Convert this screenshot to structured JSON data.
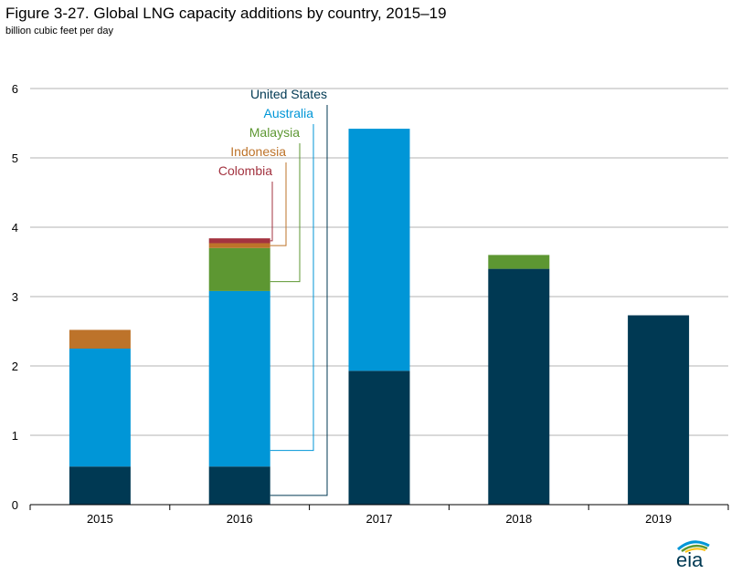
{
  "header": {
    "title": "Figure 3-27. Global LNG capacity additions by country, 2015–19",
    "subtitle": "billion cubic feet per day"
  },
  "logo": {
    "text": "eia"
  },
  "colors": {
    "United States": "#003953",
    "Australia": "#0096d7",
    "Malaysia": "#5d9732",
    "Indonesia": "#bd732a",
    "Colombia": "#a33340",
    "gridline": "#b3b3b3",
    "logo_blue": "#0096d7",
    "logo_green": "#5d9732",
    "logo_yellow": "#ffc20e"
  },
  "chart_data": {
    "type": "bar",
    "stacked": true,
    "title": "Figure 3-27. Global LNG capacity additions by country, 2015–19",
    "ylabel": "billion cubic feet per day",
    "xlabel": "",
    "ylim": [
      0,
      6
    ],
    "yticks": [
      "0",
      "1",
      "2",
      "3",
      "4",
      "5",
      "6"
    ],
    "grid": true,
    "categories": [
      "2015",
      "2016",
      "2017",
      "2018",
      "2019"
    ],
    "series": [
      {
        "name": "United States",
        "values": [
          0.55,
          0.55,
          1.93,
          3.4,
          2.73
        ]
      },
      {
        "name": "Australia",
        "values": [
          1.7,
          2.53,
          3.49,
          0,
          0
        ]
      },
      {
        "name": "Malaysia",
        "values": [
          0,
          0.62,
          0,
          0.2,
          0
        ]
      },
      {
        "name": "Indonesia",
        "values": [
          0.27,
          0.07,
          0,
          0,
          0
        ]
      },
      {
        "name": "Colombia",
        "values": [
          0,
          0.07,
          0,
          0,
          0
        ]
      }
    ],
    "legend_order": [
      "United States",
      "Australia",
      "Malaysia",
      "Indonesia",
      "Colombia"
    ],
    "legend_placement": "direct labels with leader lines to 2016 bar"
  }
}
